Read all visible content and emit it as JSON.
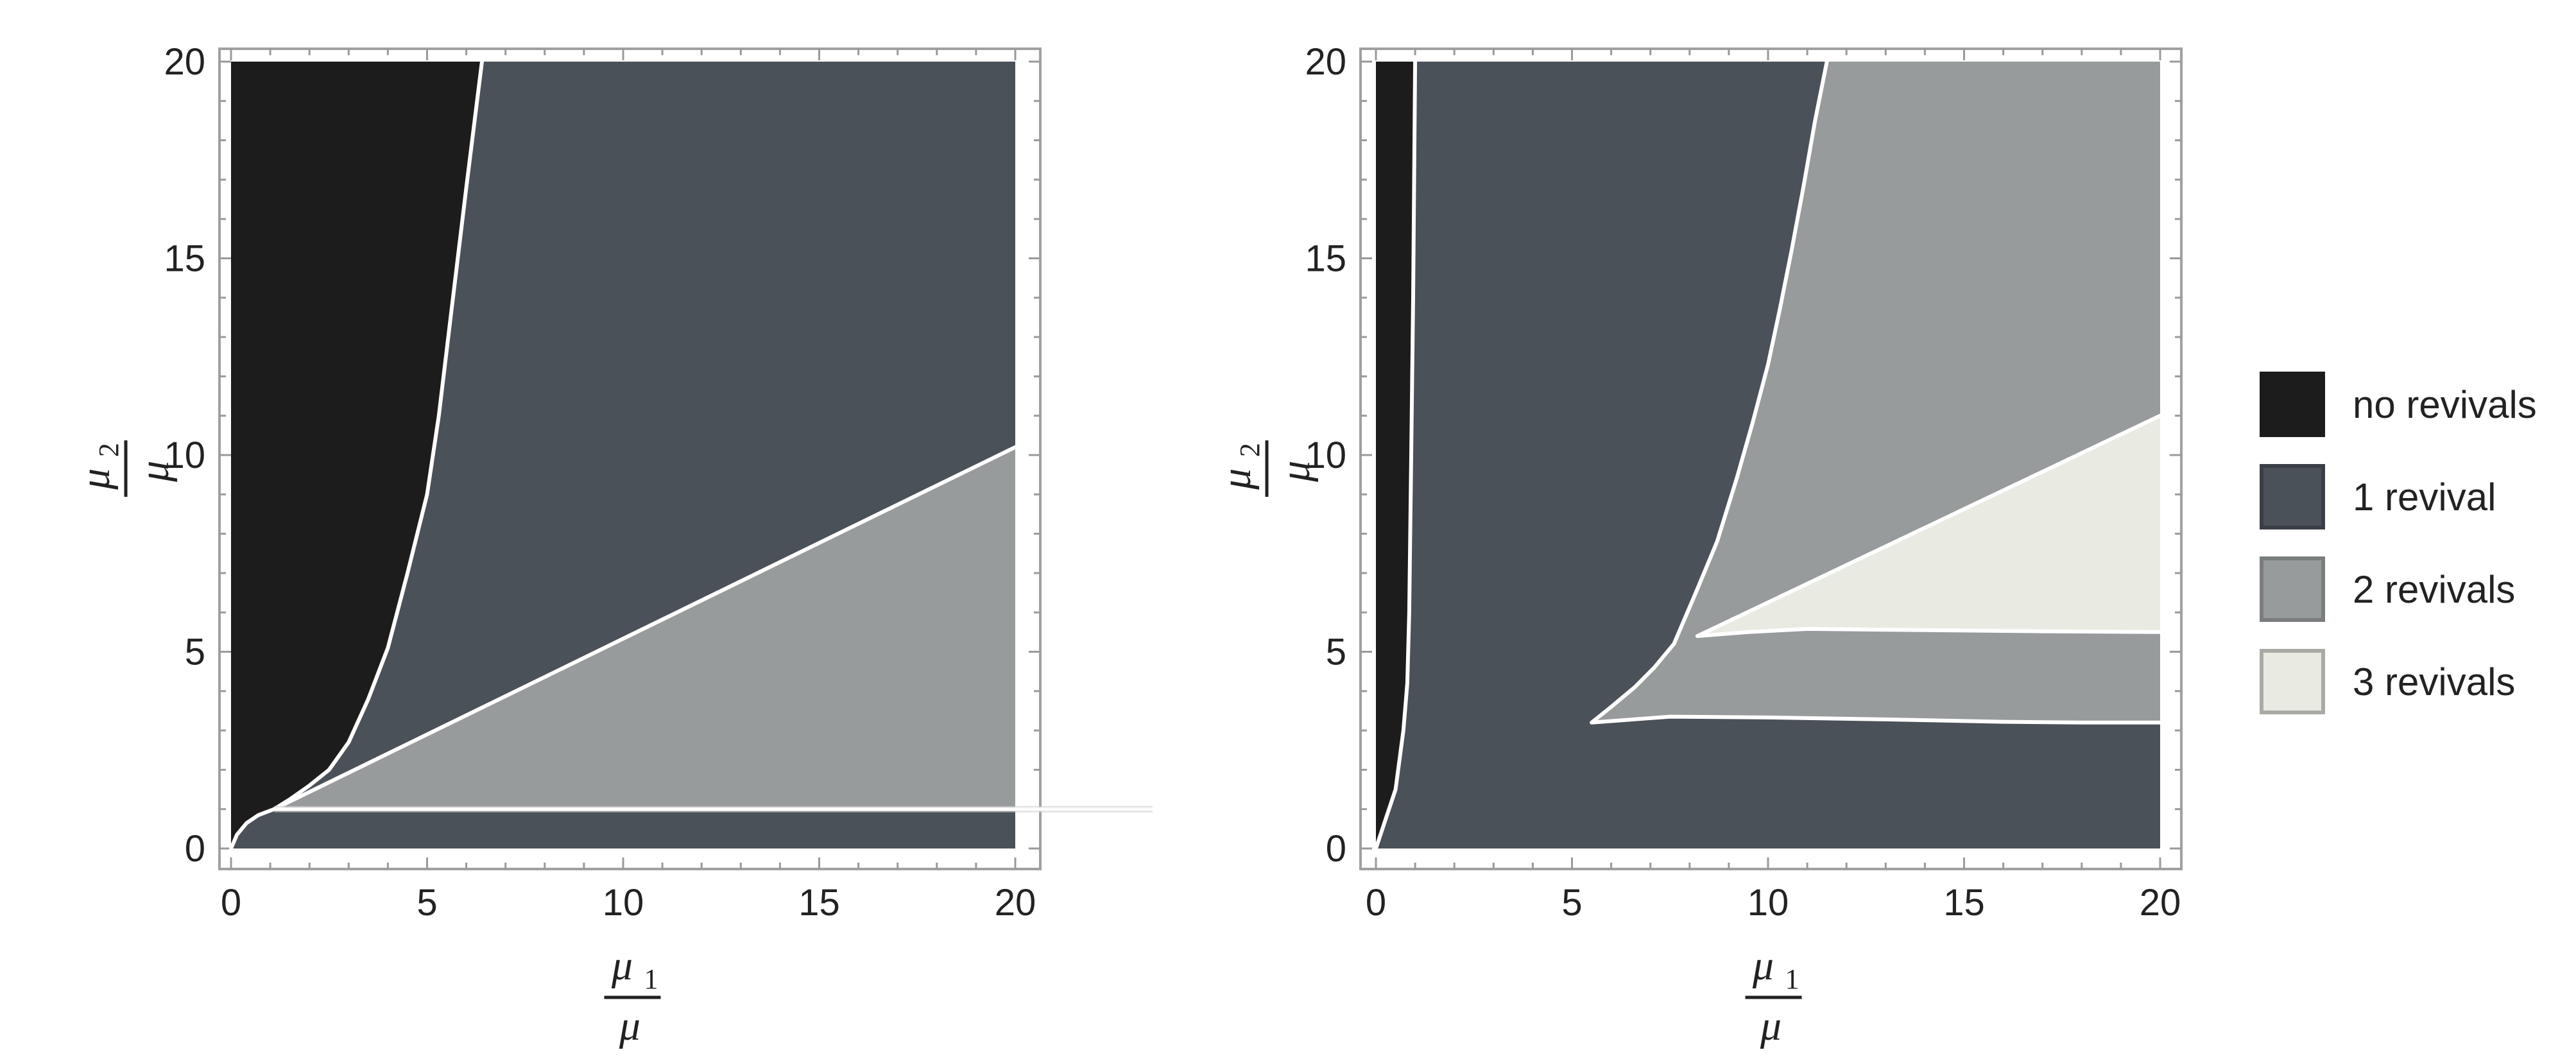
{
  "colors": {
    "no_revivals": "#1c1c1c",
    "one_revival": "#4b5158",
    "two_revivals": "#989b9c",
    "three_revivals": "#e9eae2",
    "boundary": "#ffffff",
    "frame": "#a0a0a0"
  },
  "legend": {
    "placement": "right",
    "items": [
      {
        "key": "no_revivals",
        "label": "no revivals"
      },
      {
        "key": "one_revival",
        "label": "1 revival"
      },
      {
        "key": "two_revivals",
        "label": "2 revivals"
      },
      {
        "key": "three_revivals",
        "label": "3 revivals"
      }
    ]
  },
  "chart_data": [
    {
      "type": "region-plot",
      "xlabel": {
        "num_base": "μ",
        "num_sub": "1",
        "den": "μ"
      },
      "ylabel": {
        "num_base": "μ",
        "num_sub": "2",
        "den": "μ"
      },
      "xlim": [
        0,
        20
      ],
      "ylim": [
        0,
        20
      ],
      "xticks": [
        0,
        5,
        10,
        15,
        20
      ],
      "yticks": [
        0,
        5,
        10,
        15,
        20
      ],
      "x_tick_labels": [
        "0",
        "5",
        "10",
        "15",
        "20"
      ],
      "y_tick_labels": [
        "0",
        "5",
        "10",
        "15",
        "20"
      ],
      "background_region": "one_revival",
      "regions": [
        {
          "key": "no_revivals",
          "polygon": [
            [
              0,
              0
            ],
            [
              0.15,
              0.35
            ],
            [
              0.4,
              0.65
            ],
            [
              0.7,
              0.85
            ],
            [
              1.1,
              1.0
            ],
            [
              1.5,
              1.25
            ],
            [
              2.0,
              1.6
            ],
            [
              2.5,
              2.0
            ],
            [
              3.0,
              2.7
            ],
            [
              3.5,
              3.8
            ],
            [
              4.0,
              5.1
            ],
            [
              4.5,
              7.0
            ],
            [
              5.0,
              9.0
            ],
            [
              5.3,
              11.0
            ],
            [
              5.6,
              13.5
            ],
            [
              6.0,
              16.8
            ],
            [
              6.4,
              20
            ],
            [
              0,
              20
            ]
          ]
        },
        {
          "key": "two_revivals",
          "polygon": [
            [
              1.1,
              1.0
            ],
            [
              20,
              1.0
            ],
            [
              20,
              10.2
            ]
          ]
        }
      ],
      "boundaries": [
        [
          [
            0,
            0
          ],
          [
            0.15,
            0.35
          ],
          [
            0.4,
            0.65
          ],
          [
            0.7,
            0.85
          ],
          [
            1.1,
            1.0
          ],
          [
            1.5,
            1.25
          ],
          [
            2.0,
            1.6
          ],
          [
            2.5,
            2.0
          ],
          [
            3.0,
            2.7
          ],
          [
            3.5,
            3.8
          ],
          [
            4.0,
            5.1
          ],
          [
            4.5,
            7.0
          ],
          [
            5.0,
            9.0
          ],
          [
            5.3,
            11.0
          ],
          [
            5.6,
            13.5
          ],
          [
            6.0,
            16.8
          ],
          [
            6.4,
            20
          ]
        ],
        [
          [
            1.1,
            1.0
          ],
          [
            20,
            10.2
          ]
        ],
        [
          [
            1.1,
            1.0
          ],
          [
            23.5,
            1.0
          ]
        ]
      ]
    },
    {
      "type": "region-plot",
      "xlabel": {
        "num_base": "μ",
        "num_sub": "1",
        "den": "μ"
      },
      "ylabel": {
        "num_base": "μ",
        "num_sub": "2",
        "den": "μ"
      },
      "xlim": [
        0,
        20
      ],
      "ylim": [
        0,
        20
      ],
      "xticks": [
        0,
        5,
        10,
        15,
        20
      ],
      "yticks": [
        0,
        5,
        10,
        15,
        20
      ],
      "x_tick_labels": [
        "0",
        "5",
        "10",
        "15",
        "20"
      ],
      "y_tick_labels": [
        "0",
        "5",
        "10",
        "15",
        "20"
      ],
      "background_region": "one_revival",
      "regions": [
        {
          "key": "no_revivals",
          "polygon": [
            [
              0,
              20
            ],
            [
              0,
              0
            ],
            [
              0.2,
              0.6
            ],
            [
              0.5,
              1.5
            ],
            [
              0.7,
              3.0
            ],
            [
              0.8,
              4.2
            ],
            [
              0.85,
              6.0
            ],
            [
              0.9,
              10.0
            ],
            [
              0.95,
              14.0
            ],
            [
              1.0,
              20
            ]
          ]
        },
        {
          "key": "two_revivals",
          "polygon": [
            [
              5.5,
              3.2
            ],
            [
              7.5,
              3.35
            ],
            [
              10,
              3.33
            ],
            [
              13,
              3.28
            ],
            [
              16,
              3.22
            ],
            [
              18,
              3.2
            ],
            [
              20,
              3.2
            ],
            [
              20,
              20
            ],
            [
              11.5,
              20
            ],
            [
              11.2,
              18.5
            ],
            [
              10.9,
              16.8
            ],
            [
              10.6,
              15.2
            ],
            [
              10.3,
              13.7
            ],
            [
              10.0,
              12.3
            ],
            [
              9.6,
              10.8
            ],
            [
              9.2,
              9.4
            ],
            [
              8.7,
              7.8
            ],
            [
              8.2,
              6.6
            ],
            [
              7.6,
              5.2
            ],
            [
              7.1,
              4.6
            ],
            [
              6.6,
              4.1
            ],
            [
              6.0,
              3.6
            ]
          ]
        },
        {
          "key": "three_revivals",
          "polygon": [
            [
              8.2,
              5.4
            ],
            [
              20,
              11.0
            ],
            [
              20,
              5.5
            ],
            [
              17,
              5.52
            ],
            [
              14,
              5.55
            ],
            [
              11,
              5.58
            ],
            [
              9.5,
              5.5
            ]
          ]
        }
      ],
      "boundaries": [
        [
          [
            0,
            0
          ],
          [
            0.2,
            0.6
          ],
          [
            0.5,
            1.5
          ],
          [
            0.7,
            3.0
          ],
          [
            0.8,
            4.2
          ],
          [
            0.85,
            6.0
          ],
          [
            0.9,
            10.0
          ],
          [
            0.95,
            14.0
          ],
          [
            1.0,
            20
          ]
        ],
        [
          [
            20,
            3.2
          ],
          [
            18,
            3.2
          ],
          [
            16,
            3.22
          ],
          [
            13,
            3.28
          ],
          [
            10,
            3.33
          ],
          [
            7.5,
            3.35
          ],
          [
            5.5,
            3.2
          ],
          [
            6.0,
            3.6
          ],
          [
            6.6,
            4.1
          ],
          [
            7.1,
            4.6
          ],
          [
            7.6,
            5.2
          ],
          [
            8.2,
            6.6
          ],
          [
            8.7,
            7.8
          ],
          [
            9.2,
            9.4
          ],
          [
            9.6,
            10.8
          ],
          [
            10.0,
            12.3
          ],
          [
            10.3,
            13.7
          ],
          [
            10.6,
            15.2
          ],
          [
            10.9,
            16.8
          ],
          [
            11.2,
            18.5
          ],
          [
            11.5,
            20
          ]
        ],
        [
          [
            8.2,
            5.4
          ],
          [
            20,
            11.0
          ]
        ],
        [
          [
            8.2,
            5.4
          ],
          [
            9.5,
            5.5
          ],
          [
            11,
            5.58
          ],
          [
            14,
            5.55
          ],
          [
            17,
            5.52
          ],
          [
            20,
            5.5
          ]
        ]
      ]
    }
  ]
}
